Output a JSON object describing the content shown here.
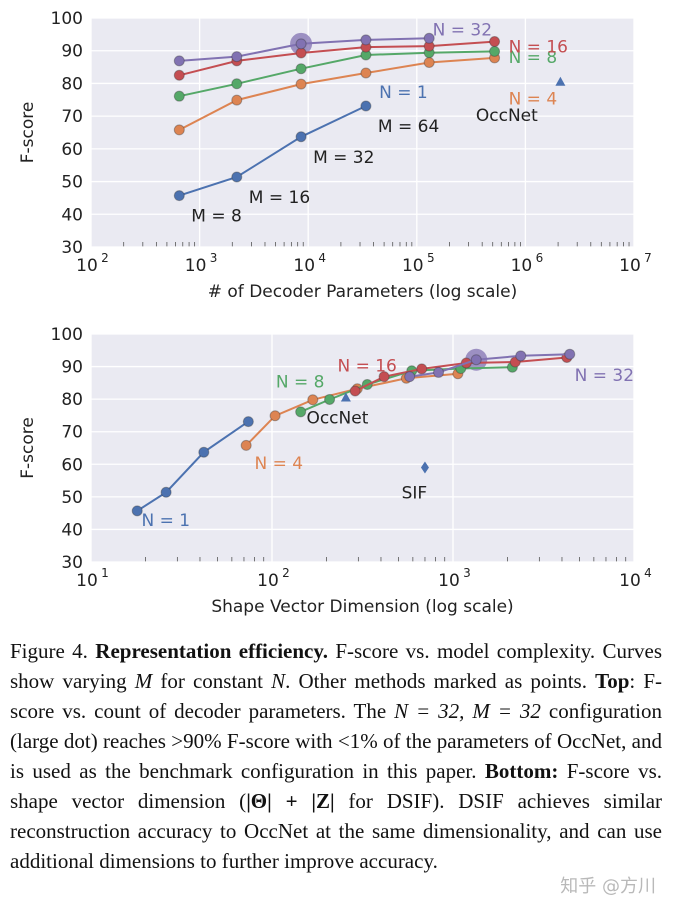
{
  "chart_data": [
    {
      "type": "line",
      "xscale": "log",
      "xlabel": "# of Decoder Parameters (log scale)",
      "ylabel": "F-score",
      "xlim": [
        100,
        10000000
      ],
      "ylim": [
        30,
        100
      ],
      "xticks": [
        {
          "value": 100,
          "base": "10",
          "exp": "2"
        },
        {
          "value": 1000,
          "base": "10",
          "exp": "3"
        },
        {
          "value": 10000,
          "base": "10",
          "exp": "4"
        },
        {
          "value": 100000,
          "base": "10",
          "exp": "5"
        },
        {
          "value": 1000000,
          "base": "10",
          "exp": "6"
        },
        {
          "value": 10000000,
          "base": "10",
          "exp": "7"
        }
      ],
      "yticks": [
        "30",
        "40",
        "50",
        "60",
        "70",
        "80",
        "90",
        "100"
      ],
      "series": [
        {
          "name": "N = 1",
          "color": "#4C72B0",
          "points": [
            [
              650,
              45.7
            ],
            [
              2200,
              51.4
            ],
            [
              8600,
              63.7
            ],
            [
              34000,
              73.1
            ]
          ],
          "label_at": [
            45000,
            75.5
          ]
        },
        {
          "name": "N = 4",
          "color": "#DD8452",
          "points": [
            [
              650,
              65.8
            ],
            [
              2200,
              74.9
            ],
            [
              8600,
              79.8
            ],
            [
              34000,
              83.2
            ],
            [
              130000,
              86.4
            ],
            [
              520000,
              87.8
            ]
          ],
          "label_at": [
            700000,
            73.5
          ]
        },
        {
          "name": "N = 8",
          "color": "#55A868",
          "points": [
            [
              650,
              76.1
            ],
            [
              2200,
              79.9
            ],
            [
              8600,
              84.5
            ],
            [
              34000,
              88.7
            ],
            [
              130000,
              89.4
            ],
            [
              520000,
              89.8
            ]
          ],
          "label_at": [
            700000,
            86.2
          ]
        },
        {
          "name": "N = 16",
          "color": "#C44E52",
          "points": [
            [
              650,
              82.5
            ],
            [
              2200,
              86.9
            ],
            [
              8600,
              89.3
            ],
            [
              34000,
              91.1
            ],
            [
              130000,
              91.4
            ],
            [
              520000,
              92.8
            ]
          ],
          "label_at": [
            700000,
            89.5
          ]
        },
        {
          "name": "N = 32",
          "color": "#8172B2",
          "points": [
            [
              650,
              86.9
            ],
            [
              2200,
              88.2
            ],
            [
              8600,
              92.1
            ],
            [
              34000,
              93.3
            ],
            [
              130000,
              93.8
            ]
          ],
          "label_at": [
            140000,
            94.6
          ]
        }
      ],
      "highlight": {
        "x": 8600,
        "y": 92.1,
        "color": "#8172B2"
      },
      "m_labels": [
        {
          "text": "M = 8",
          "x": 650,
          "y": 45.7,
          "dx": 12,
          "dy": 26
        },
        {
          "text": "M = 16",
          "x": 2200,
          "y": 51.4,
          "dx": 12,
          "dy": 26
        },
        {
          "text": "M = 32",
          "x": 8600,
          "y": 63.7,
          "dx": 12,
          "dy": 26
        },
        {
          "text": "M = 64",
          "x": 34000,
          "y": 73.1,
          "dx": 12,
          "dy": 26
        }
      ],
      "points": [
        {
          "name": "OccNet",
          "x": 2100000,
          "y": 80.5,
          "marker": "triangle",
          "color": "#4C72B0",
          "label_at": [
            350000,
            68.5
          ]
        }
      ]
    },
    {
      "type": "line",
      "xscale": "log",
      "xlabel": "Shape Vector Dimension (log scale)",
      "ylabel": "F-score",
      "xlim": [
        10,
        10000
      ],
      "ylim": [
        30,
        100
      ],
      "xticks": [
        {
          "value": 10,
          "base": "10",
          "exp": "1"
        },
        {
          "value": 100,
          "base": "10",
          "exp": "2"
        },
        {
          "value": 1000,
          "base": "10",
          "exp": "3"
        },
        {
          "value": 10000,
          "base": "10",
          "exp": "4"
        }
      ],
      "yticks": [
        "30",
        "40",
        "50",
        "60",
        "70",
        "80",
        "90",
        "100"
      ],
      "series": [
        {
          "name": "N = 1",
          "color": "#4C72B0",
          "points": [
            [
              18,
              45.7
            ],
            [
              26,
              51.4
            ],
            [
              42,
              63.7
            ],
            [
              74,
              73.1
            ]
          ],
          "label_at": [
            19,
            41.0
          ]
        },
        {
          "name": "N = 4",
          "color": "#DD8452",
          "points": [
            [
              72,
              65.8
            ],
            [
              104,
              74.9
            ],
            [
              168,
              79.8
            ],
            [
              296,
              83.2
            ],
            [
              552,
              86.4
            ],
            [
              1064,
              87.8
            ]
          ],
          "label_at": [
            80,
            58.5
          ]
        },
        {
          "name": "N = 8",
          "color": "#55A868",
          "points": [
            [
              144,
              76.1
            ],
            [
              208,
              79.9
            ],
            [
              336,
              84.5
            ],
            [
              592,
              88.7
            ],
            [
              1104,
              89.4
            ],
            [
              2128,
              89.8
            ]
          ],
          "label_at": [
            105,
            83.5
          ]
        },
        {
          "name": "N = 16",
          "color": "#C44E52",
          "points": [
            [
              288,
              82.5
            ],
            [
              416,
              86.9
            ],
            [
              672,
              89.3
            ],
            [
              1184,
              91.1
            ],
            [
              2208,
              91.4
            ],
            [
              4256,
              92.8
            ]
          ],
          "label_at": [
            230,
            88.5
          ]
        },
        {
          "name": "N = 32",
          "color": "#8172B2",
          "points": [
            [
              576,
              86.9
            ],
            [
              832,
              88.2
            ],
            [
              1344,
              92.1
            ],
            [
              2368,
              93.3
            ],
            [
              4416,
              93.8
            ]
          ],
          "label_at": [
            4700,
            85.5
          ]
        }
      ],
      "highlight": {
        "x": 1344,
        "y": 92.1,
        "color": "#8172B2"
      },
      "m_labels": [],
      "points": [
        {
          "name": "OccNet",
          "x": 256,
          "y": 80.5,
          "marker": "triangle",
          "color": "#4C72B0",
          "label_at": [
            155,
            72.5
          ]
        },
        {
          "name": "SIF",
          "x": 700,
          "y": 59.0,
          "marker": "diamond",
          "color": "#4C72B0",
          "label_at": [
            520,
            49.5
          ]
        }
      ]
    }
  ],
  "caption": {
    "figure_label": "Figure 4.",
    "bold_title": "Representation efficiency.",
    "intro": "F-score vs. model complexity. Curves show varying",
    "var_m": "M",
    "for_constant": "for constant",
    "var_n": "N",
    "other_methods": ". Other methods marked as points.",
    "top_label": "Top",
    "top_text": ": F-score vs. count of decoder parameters. The",
    "config_expr": "N = 32, M = 32",
    "config_text": "configuration (large dot) reaches >90% F-score with <1% of the parameters of OccNet, and is used as the benchmark configuration in this paper.",
    "bottom_label": "Bottom:",
    "bottom_text": "F-score vs. shape vector dimension (",
    "dim_expr": "|Θ| + |Z|",
    "bottom_tail": "for DSIF). DSIF achieves similar reconstruction accuracy to OccNet at the same dimensionality, and can use additional dimensions to further improve accuracy."
  },
  "watermark": "知乎 @方川"
}
